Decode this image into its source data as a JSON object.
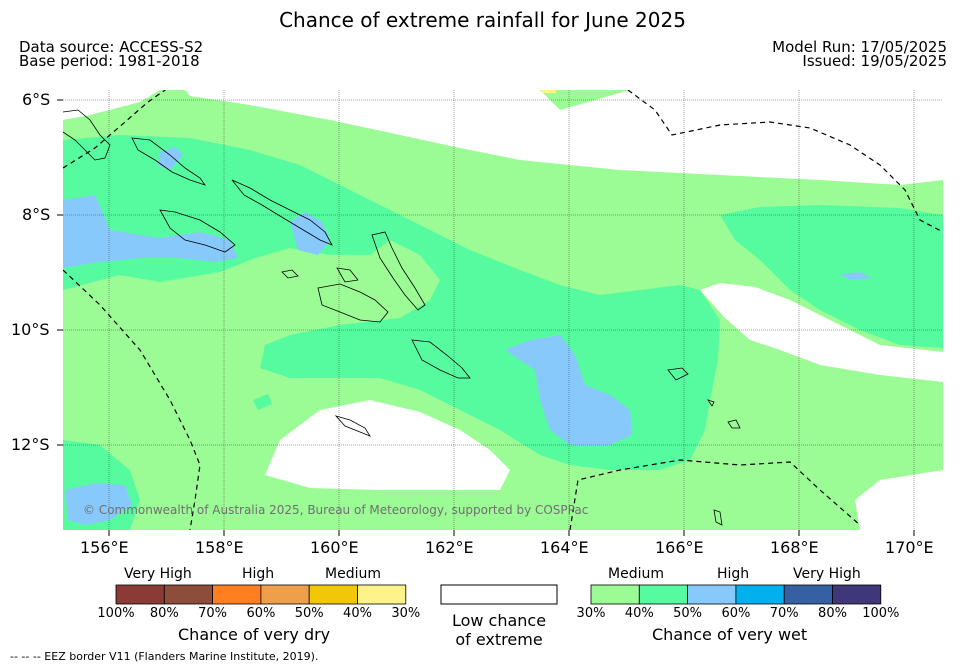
{
  "title": "Chance of extreme rainfall for June 2025",
  "meta": {
    "data_source": "Data source: ACCESS-S2",
    "base_period": "Base period: 1981-2018",
    "model_run": "Model Run: 17/05/2025",
    "issued": "Issued: 19/05/2025"
  },
  "map": {
    "lat_labels": [
      "6°S",
      "8°S",
      "10°S",
      "12°S"
    ],
    "lon_labels": [
      "156°E",
      "158°E",
      "160°E",
      "162°E",
      "164°E",
      "166°E",
      "168°E",
      "170°E"
    ],
    "credit": "© Commonwealth of Australia 2025, Bureau of Meteorology, supported by COSPPac",
    "colors": {
      "medium_wet": "#9bfb94",
      "high_wet": "#57fb9f",
      "high_wet_50": "#88c9fc",
      "very_high_wet_60": "#02b0ee",
      "very_high_wet_70": "#3561a4",
      "very_high_wet_80": "#3f3778",
      "low": "#ffffff"
    }
  },
  "legend": {
    "dry": {
      "groups": [
        "Very High",
        "High",
        "Medium"
      ],
      "ticks": [
        "100%",
        "80%",
        "70%",
        "60%",
        "50%",
        "40%",
        "30%"
      ],
      "colors": [
        "#8b3b36",
        "#8e4c3b",
        "#ff7f20",
        "#ee9f4a",
        "#f1c708",
        "#fcf38a"
      ],
      "title": "Chance of very dry"
    },
    "low": {
      "line1": "Low chance",
      "line2": "of extreme"
    },
    "wet": {
      "groups": [
        "Medium",
        "High",
        "Very High"
      ],
      "ticks": [
        "30%",
        "40%",
        "50%",
        "60%",
        "70%",
        "80%",
        "100%"
      ],
      "colors": [
        "#9bfb94",
        "#57fb9f",
        "#88c9fc",
        "#02b0ee",
        "#3561a4",
        "#3f3778"
      ],
      "title": "Chance of very wet"
    }
  },
  "footnote": "-- -- -- EEZ border V11 (Flanders Marine Institute, 2019)."
}
